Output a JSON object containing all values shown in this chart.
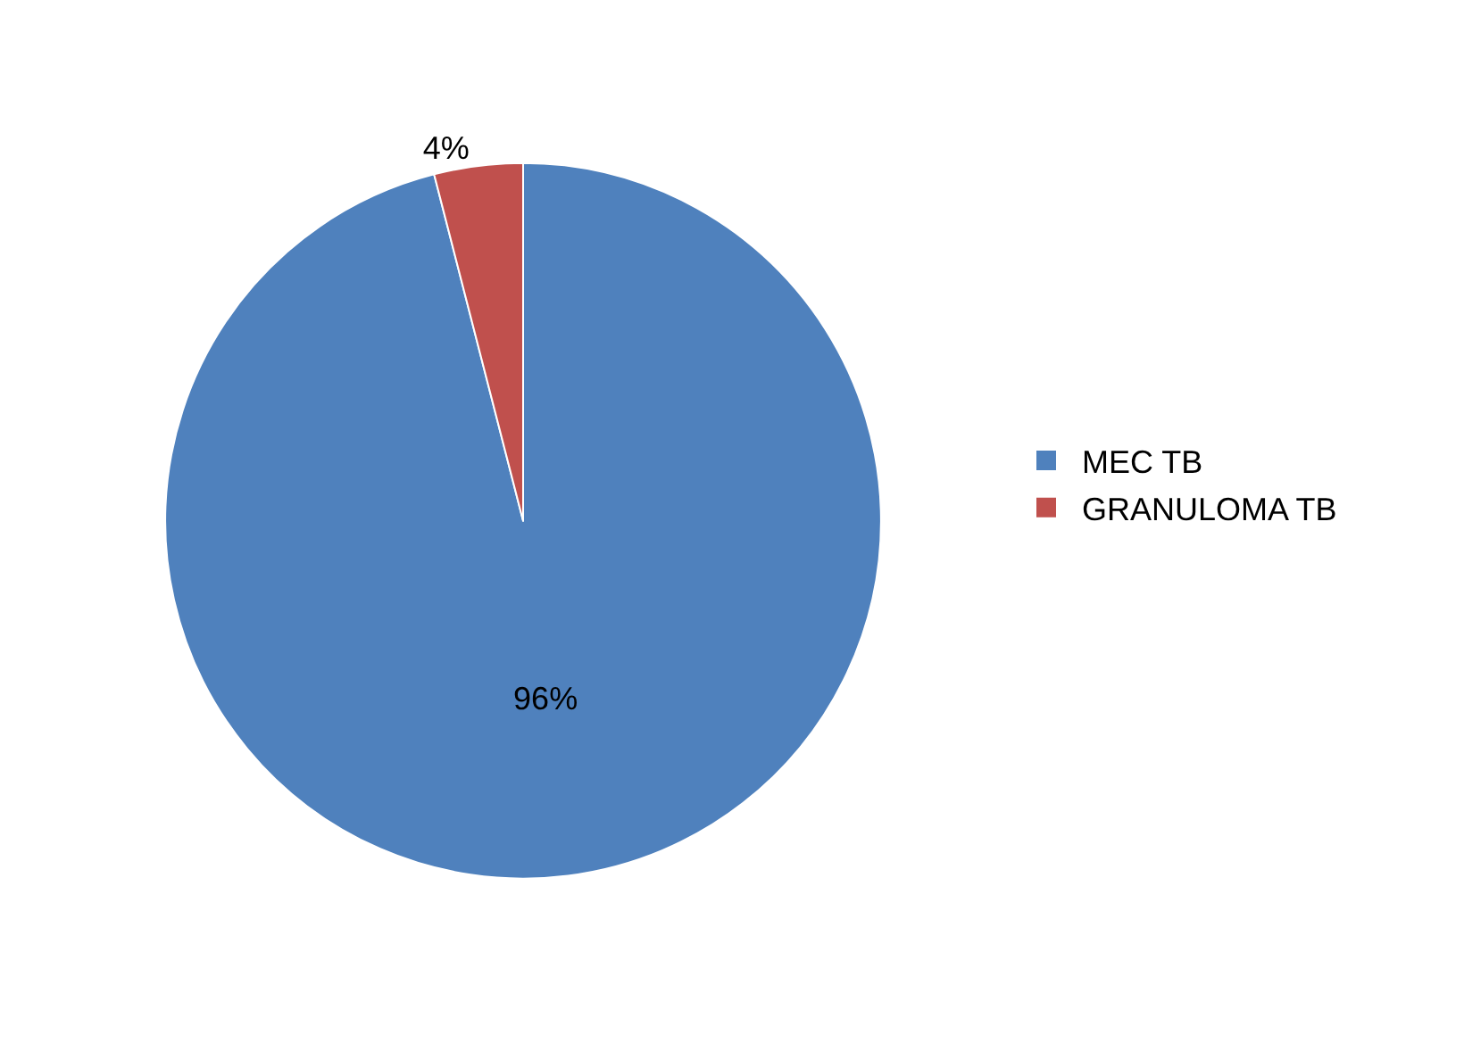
{
  "chart_data": {
    "type": "pie",
    "categories": [
      "MEC TB",
      "GRANULOMA TB"
    ],
    "values": [
      96,
      4
    ],
    "colors": [
      "#4f81bd",
      "#c0504d"
    ],
    "value_labels": [
      "96%",
      "4%"
    ],
    "legend": "right"
  }
}
